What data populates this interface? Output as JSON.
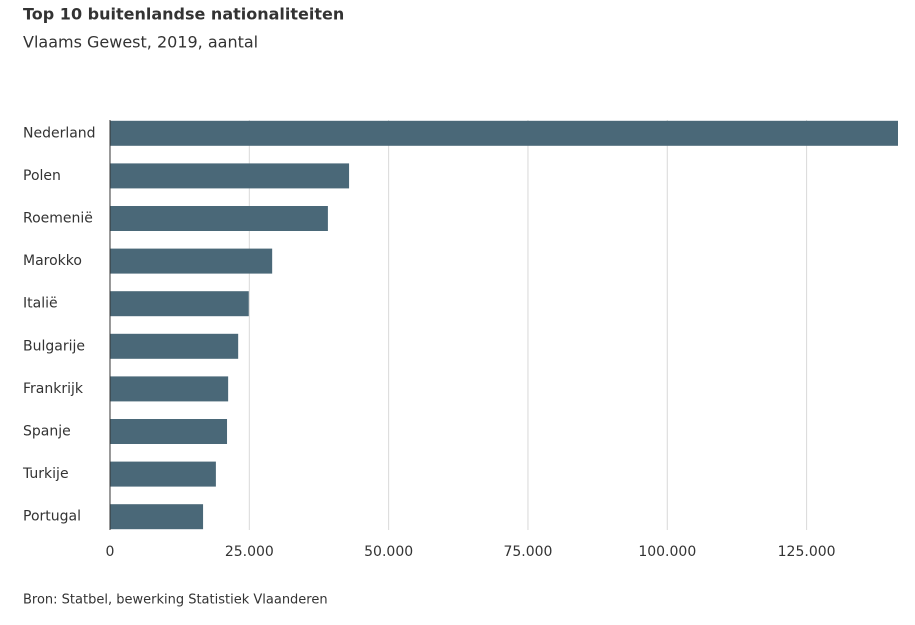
{
  "chart_data": {
    "type": "bar",
    "orientation": "horizontal",
    "title": "Top 10 buitenlandse nationaliteiten",
    "subtitle": "Vlaams Gewest, 2019, aantal",
    "source": "Bron: Statbel, bewerking Statistiek Vlaanderen",
    "categories": [
      "Nederland",
      "Polen",
      "Roemenië",
      "Marokko",
      "Italië",
      "Bulgarije",
      "Frankrijk",
      "Spanje",
      "Turkije",
      "Portugal"
    ],
    "values": [
      141400,
      42900,
      39100,
      29100,
      24900,
      23000,
      21200,
      21000,
      19000,
      16700
    ],
    "color": "#4a6878",
    "xlim": [
      0,
      141400
    ],
    "xticks": [
      0,
      {
        "value": 25000,
        "label": "25.000"
      },
      {
        "value": 50000,
        "label": "50.000"
      },
      {
        "value": 75000,
        "label": "75.000"
      },
      {
        "value": 100000,
        "label": "100.000"
      },
      {
        "value": 125000,
        "label": "125.000"
      }
    ],
    "grid": true
  }
}
